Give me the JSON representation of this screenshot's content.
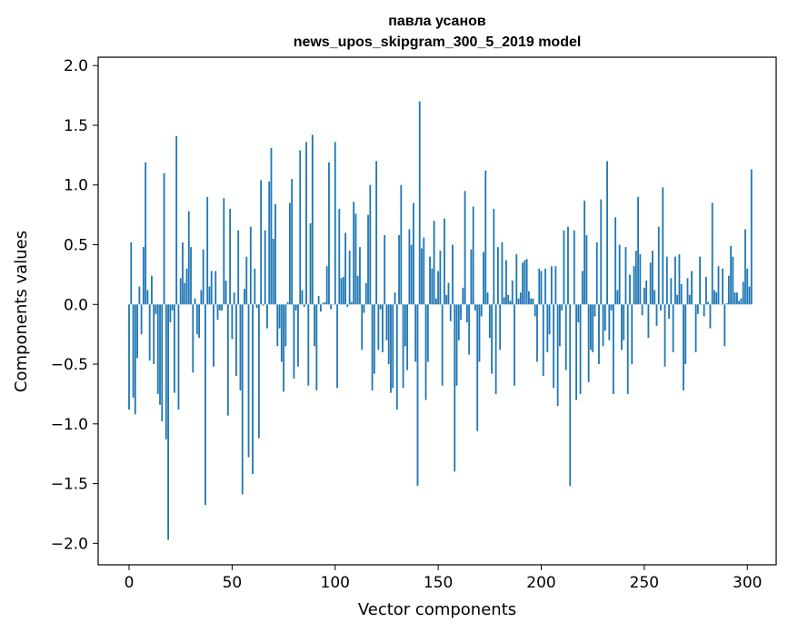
{
  "chart_data": {
    "type": "bar",
    "title_line1": "павла усанов",
    "title_line2": "news_upos_skipgram_300_5_2019 model",
    "xlabel": "Vector components",
    "ylabel": "Components values",
    "xlim": [
      -15,
      314
    ],
    "ylim": [
      -2.18,
      2.07
    ],
    "xticks": [
      0,
      50,
      100,
      150,
      200,
      250,
      300
    ],
    "yticks": [
      -2.0,
      -1.5,
      -1.0,
      -0.5,
      0.0,
      0.5,
      1.0,
      1.5,
      2.0
    ],
    "xtick_labels": [
      "0",
      "50",
      "100",
      "150",
      "200",
      "250",
      "300"
    ],
    "ytick_labels": [
      "−2.0",
      "−1.5",
      "−1.0",
      "−0.5",
      "0.0",
      "0.5",
      "1.0",
      "1.5",
      "2.0"
    ],
    "grid": false,
    "bar_color": "#1f77b4",
    "values": [
      -0.88,
      0.52,
      -0.78,
      -0.92,
      -0.45,
      0.15,
      -0.25,
      0.48,
      1.19,
      0.12,
      -0.47,
      0.24,
      -0.5,
      -0.08,
      -0.75,
      -0.84,
      -0.98,
      1.1,
      -1.13,
      -1.97,
      -0.15,
      -0.05,
      -0.74,
      1.41,
      -0.88,
      0.22,
      0.52,
      0.18,
      0.3,
      0.78,
      0.48,
      -0.57,
      0.05,
      -0.25,
      -0.28,
      0.12,
      0.46,
      -1.68,
      0.9,
      0.15,
      0.28,
      -0.52,
      0.28,
      -0.13,
      -0.05,
      -0.05,
      0.89,
      0.2,
      -0.93,
      0.8,
      -0.29,
      0.1,
      -0.6,
      0.62,
      -0.72,
      -1.59,
      0.13,
      0.4,
      -1.28,
      0.65,
      -1.42,
      0.3,
      -0.03,
      -1.12,
      1.04,
      -0.01,
      0.62,
      -0.2,
      1.03,
      1.31,
      0.55,
      0.84,
      -0.35,
      -0.2,
      -0.48,
      -0.73,
      -0.35,
      0.02,
      0.85,
      1.05,
      -0.62,
      -0.05,
      -0.52,
      1.29,
      0.12,
      -0.02,
      1.36,
      -0.68,
      0.68,
      1.42,
      -0.35,
      -0.72,
      0.07,
      -0.06,
      0.01,
      0.02,
      0.32,
      1.19,
      -0.04,
      0.0,
      1.36,
      -0.7,
      0.8,
      0.22,
      0.23,
      0.6,
      -0.02,
      0.45,
      0.02,
      0.86,
      0.76,
      0.24,
      0.48,
      -0.38,
      -0.07,
      0.18,
      0.75,
      1.0,
      -0.72,
      -0.58,
      1.2,
      -0.38,
      -0.04,
      -0.4,
      0.58,
      -0.3,
      -0.5,
      -0.74,
      -0.7,
      0.1,
      -0.88,
      0.58,
      1.0,
      -0.7,
      -0.35,
      -0.55,
      0.63,
      0.5,
      0.85,
      -0.48,
      -1.52,
      1.7,
      0.47,
      0.56,
      -0.8,
      -0.48,
      0.4,
      0.3,
      0.7,
      0.05,
      0.28,
      0.45,
      -0.68,
      0.72,
      0.08,
      0.18,
      -0.14,
      0.5,
      -1.4,
      -0.68,
      -0.3,
      -0.13,
      0.14,
      0.95,
      -0.15,
      -0.42,
      0.46,
      0.82,
      -0.05,
      -1.06,
      -0.48,
      -0.1,
      0.44,
      1.12,
      0.1,
      -0.28,
      -0.58,
      0.8,
      -0.75,
      0.48,
      -0.38,
      0.52,
      0.06,
      0.37,
      0.08,
      0.03,
      0.2,
      -0.68,
      0.42,
      0.05,
      0.1,
      0.35,
      0.37,
      0.38,
      0.11,
      0.05,
      0.05,
      -0.1,
      -0.48,
      0.3,
      0.28,
      -0.6,
      0.3,
      -0.4,
      -0.25,
      0.32,
      -0.7,
      0.32,
      -0.85,
      -0.35,
      -0.05,
      0.62,
      -0.55,
      0.65,
      -1.52,
      0.0,
      0.62,
      -0.8,
      -0.15,
      -0.75,
      0.28,
      0.87,
      0.58,
      -0.65,
      -0.38,
      -0.4,
      -0.1,
      0.52,
      -0.5,
      0.88,
      -0.35,
      -0.22,
      1.2,
      -0.3,
      -0.05,
      -0.75,
      0.73,
      0.12,
      0.5,
      -0.38,
      -0.3,
      0.48,
      -0.75,
      0.25,
      -0.5,
      0.32,
      0.45,
      0.9,
      0.42,
      -0.09,
      0.14,
      0.2,
      -0.28,
      0.35,
      0.45,
      0.12,
      -0.18,
      0.65,
      -0.05,
      0.98,
      -0.52,
      0.4,
      -0.12,
      0.22,
      -0.4,
      0.4,
      0.08,
      0.42,
      0.17,
      -0.72,
      -0.5,
      0.22,
      0.08,
      0.28,
      0.0,
      -0.4,
      -0.08,
      0.4,
      0.0,
      -0.1,
      0.23,
      0.02,
      -0.2,
      0.85,
      0.12,
      0.1,
      0.32,
      0.0,
      0.3,
      -0.35,
      0.01,
      0.24,
      0.49,
      0.4,
      0.1,
      0.1,
      0.03,
      0.05,
      0.19,
      0.63,
      0.3,
      0.15,
      1.13
    ]
  }
}
